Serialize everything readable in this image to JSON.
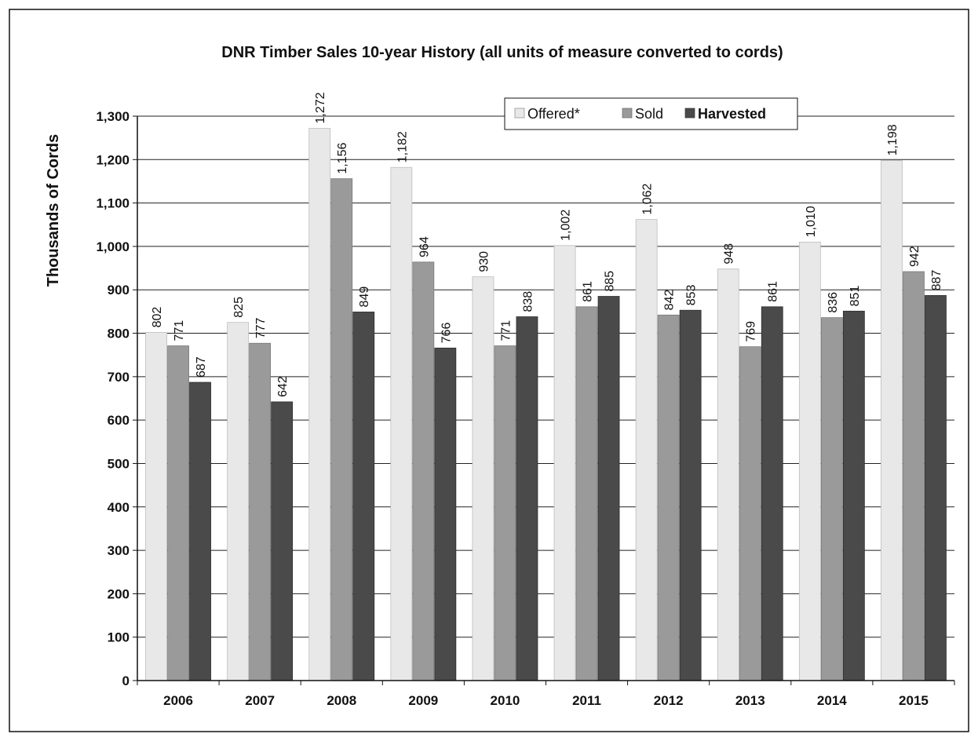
{
  "chart_data": {
    "type": "bar",
    "title": "DNR Timber Sales 10-year History (all units of measure converted to cords)",
    "ylabel": "Thousands of Cords",
    "xlabel": "",
    "categories": [
      "2006",
      "2007",
      "2008",
      "2009",
      "2010",
      "2011",
      "2012",
      "2013",
      "2014",
      "2015"
    ],
    "ylim": [
      0,
      1300
    ],
    "yticks": [
      0,
      100,
      200,
      300,
      400,
      500,
      600,
      700,
      800,
      900,
      1000,
      1100,
      1200,
      1300
    ],
    "ytick_labels": [
      "0",
      "100",
      "200",
      "300",
      "400",
      "500",
      "600",
      "700",
      "800",
      "900",
      "1,000",
      "1,100",
      "1,200",
      "1,300"
    ],
    "grid": true,
    "legend_position": "top-right",
    "series": [
      {
        "name": "Offered*",
        "color": "#e8e8e8",
        "values": [
          802,
          825,
          1272,
          1182,
          930,
          1002,
          1062,
          948,
          1010,
          1198
        ],
        "labels": [
          "802",
          "825",
          "1,272",
          "1,182",
          "930",
          "1,002",
          "1,062",
          "948",
          "1,010",
          "1,198"
        ]
      },
      {
        "name": "Sold",
        "color": "#9a9a9a",
        "values": [
          771,
          777,
          1156,
          964,
          771,
          861,
          842,
          769,
          836,
          942
        ],
        "labels": [
          "771",
          "777",
          "1,156",
          "964",
          "771",
          "861",
          "842",
          "769",
          "836",
          "942"
        ]
      },
      {
        "name": "Harvested",
        "color": "#4a4a4a",
        "values": [
          687,
          642,
          849,
          766,
          838,
          885,
          853,
          861,
          851,
          887
        ],
        "labels": [
          "687",
          "642",
          "849",
          "766",
          "838",
          "885",
          "853",
          "861",
          "851",
          "887"
        ]
      }
    ]
  }
}
